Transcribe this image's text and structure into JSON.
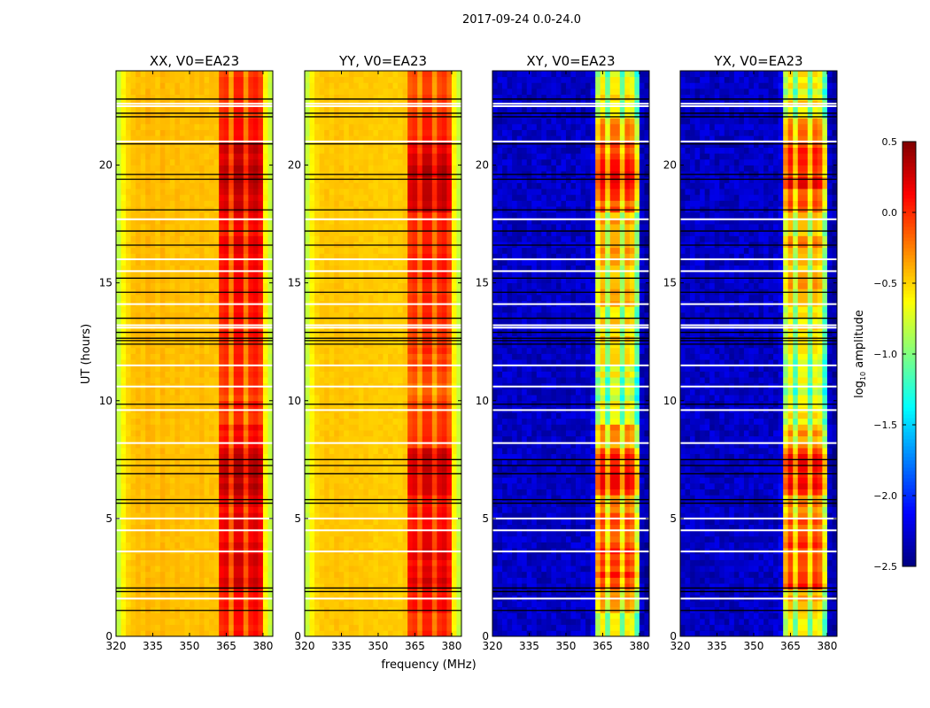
{
  "chart_data": {
    "type": "heatmap",
    "title": "2017-09-24 0.0-24.0",
    "xlabel": "frequency (MHz)",
    "ylabel": "UT (hours)",
    "xlim": [
      320,
      384
    ],
    "ylim": [
      0,
      24
    ],
    "xticks": [
      "320",
      "335",
      "350",
      "365",
      "380"
    ],
    "xtick_values": [
      320,
      335,
      350,
      365,
      380
    ],
    "yticks": [
      "0",
      "5",
      "10",
      "15",
      "20"
    ],
    "ytick_values": [
      0,
      5,
      10,
      15,
      20
    ],
    "colorbar": {
      "label_main": "log",
      "label_sub": "10",
      "label_rest": " amplitude",
      "vmin": -2.5,
      "vmax": 0.5,
      "ticks": [
        "0.5",
        "0.0",
        "−0.5",
        "−1.0",
        "−1.5",
        "−2.0",
        "−2.5"
      ],
      "tick_values": [
        0.5,
        0.0,
        -0.5,
        -1.0,
        -1.5,
        -2.0,
        -2.5
      ],
      "colormap": "jet"
    },
    "freq_bin_width_mhz": 2,
    "panels": [
      {
        "title": "XX, V0=EA23",
        "kind": "parallel",
        "base_profile": [
          -0.8,
          -0.6,
          -0.5,
          -0.45,
          -0.42,
          -0.45,
          -0.4,
          -0.42,
          -0.45,
          -0.4,
          -0.43,
          -0.45,
          -0.42,
          -0.44,
          -0.45,
          -0.43,
          -0.45,
          -0.42,
          -0.45,
          -0.44,
          -0.45,
          -0.05,
          0.0,
          -0.35,
          0.05,
          0.05,
          -0.3,
          0.0,
          0.05,
          -0.05,
          -0.6,
          -0.8
        ],
        "hourly_band_gain": [
          0.05,
          0.1,
          0.2,
          0.2,
          0.15,
          0.15,
          0.3,
          0.3,
          0.1,
          0.0,
          -0.05,
          0.0,
          0.05,
          0.05,
          0.1,
          0.1,
          0.15,
          0.1,
          0.25,
          0.3,
          0.25,
          0.1,
          0.0,
          -0.05
        ]
      },
      {
        "title": "YY, V0=EA23",
        "kind": "parallel",
        "base_profile": [
          -0.8,
          -0.6,
          -0.5,
          -0.47,
          -0.45,
          -0.47,
          -0.44,
          -0.45,
          -0.47,
          -0.45,
          -0.46,
          -0.47,
          -0.46,
          -0.47,
          -0.48,
          -0.47,
          -0.48,
          -0.47,
          -0.48,
          -0.48,
          -0.45,
          -0.1,
          -0.05,
          -0.3,
          0.0,
          0.0,
          -0.3,
          -0.05,
          0.0,
          -0.15,
          -0.6,
          -0.8
        ],
        "hourly_band_gain": [
          0.05,
          0.1,
          0.25,
          0.2,
          0.15,
          0.15,
          0.3,
          0.3,
          0.05,
          0.0,
          -0.1,
          -0.05,
          0.0,
          0.0,
          0.05,
          0.05,
          0.1,
          0.05,
          0.3,
          0.35,
          0.25,
          0.1,
          0.0,
          -0.05
        ]
      },
      {
        "title": "XY, V0=EA23",
        "kind": "cross",
        "base_profile": [
          -2.3,
          -2.3,
          -2.3,
          -2.3,
          -2.3,
          -2.3,
          -2.3,
          -2.3,
          -2.3,
          -2.3,
          -2.3,
          -2.3,
          -2.3,
          -2.3,
          -2.3,
          -2.3,
          -2.3,
          -2.3,
          -2.3,
          -2.3,
          -2.2,
          -0.9,
          -0.6,
          -1.1,
          -0.6,
          -0.6,
          -1.1,
          -0.6,
          -0.7,
          -1.2,
          -2.3,
          -2.4
        ],
        "hourly_band_gain": [
          0.0,
          0.2,
          0.6,
          0.6,
          0.5,
          0.4,
          0.7,
          0.7,
          0.3,
          0.0,
          -0.1,
          0.0,
          0.1,
          0.1,
          0.2,
          0.2,
          0.3,
          0.2,
          0.5,
          0.7,
          0.6,
          0.4,
          0.1,
          0.0
        ]
      },
      {
        "title": "YX, V0=EA23",
        "kind": "cross",
        "base_profile": [
          -2.3,
          -2.3,
          -2.3,
          -2.3,
          -2.3,
          -2.3,
          -2.3,
          -2.3,
          -2.3,
          -2.3,
          -2.3,
          -2.3,
          -2.3,
          -2.3,
          -2.3,
          -2.3,
          -2.3,
          -2.3,
          -2.3,
          -2.3,
          -2.2,
          -0.9,
          -0.6,
          -1.1,
          -0.6,
          -0.6,
          -1.1,
          -0.6,
          -0.7,
          -1.2,
          -2.3,
          -2.4
        ],
        "hourly_band_gain": [
          0.0,
          0.2,
          0.6,
          0.6,
          0.5,
          0.4,
          0.7,
          0.7,
          0.3,
          0.0,
          -0.1,
          0.0,
          0.1,
          0.1,
          0.2,
          0.2,
          0.3,
          0.2,
          0.5,
          0.7,
          0.6,
          0.4,
          0.1,
          0.0
        ]
      }
    ],
    "flagged_black_hours": [
      1.1,
      1.9,
      2.05,
      5.65,
      5.8,
      6.9,
      7.25,
      7.5,
      9.85,
      12.4,
      12.55,
      12.65,
      12.9,
      13.5,
      14.6,
      15.2,
      16.6,
      17.2,
      18.1,
      19.4,
      19.6,
      20.9,
      22.05,
      22.2,
      22.8
    ],
    "flagged_white_hours": [
      1.6,
      3.6,
      4.5,
      5.0,
      8.2,
      9.6,
      10.6,
      11.5,
      13.1,
      13.2,
      14.1,
      15.5,
      16.0,
      17.7,
      21.0,
      22.5,
      22.6
    ],
    "grid": false
  }
}
